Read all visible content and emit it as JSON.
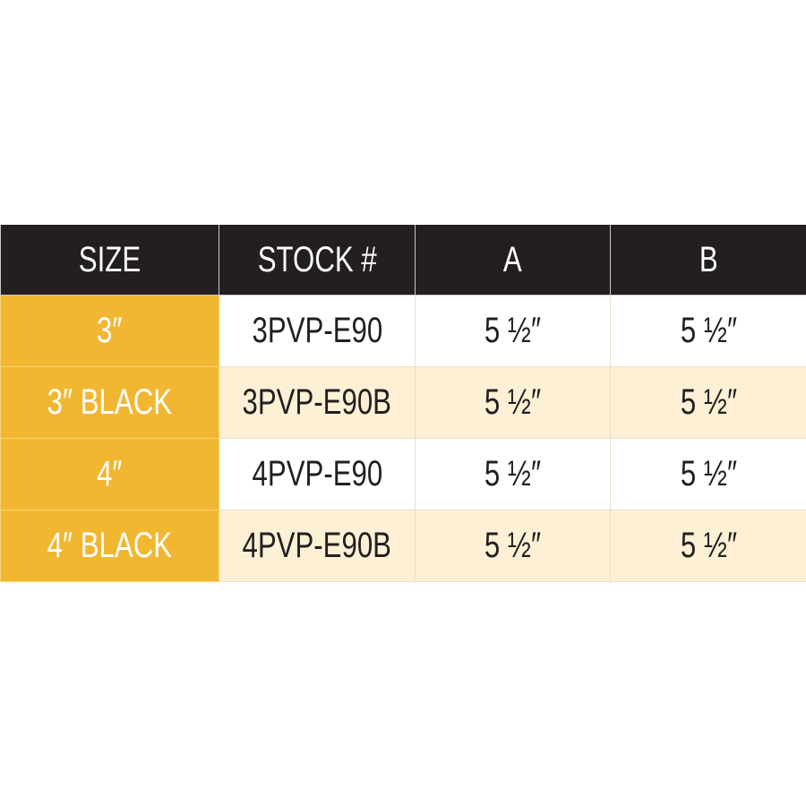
{
  "colors": {
    "header_bg": "#231f20",
    "size_col_bg": "#f2b731",
    "alt_row_bg": "#fdf0d5",
    "text": "#231f20"
  },
  "table": {
    "headers": [
      "SIZE",
      "STOCK #",
      "A",
      "B"
    ],
    "rows": [
      [
        "3″",
        "3PVP-E90",
        "5 ½″",
        "5 ½″"
      ],
      [
        "3″ BLACK",
        "3PVP-E90B",
        "5 ½″",
        "5 ½″"
      ],
      [
        "4″",
        "4PVP-E90",
        "5 ½″",
        "5 ½″"
      ],
      [
        "4″ BLACK",
        "4PVP-E90B",
        "5 ½″",
        "5 ½″"
      ]
    ]
  }
}
